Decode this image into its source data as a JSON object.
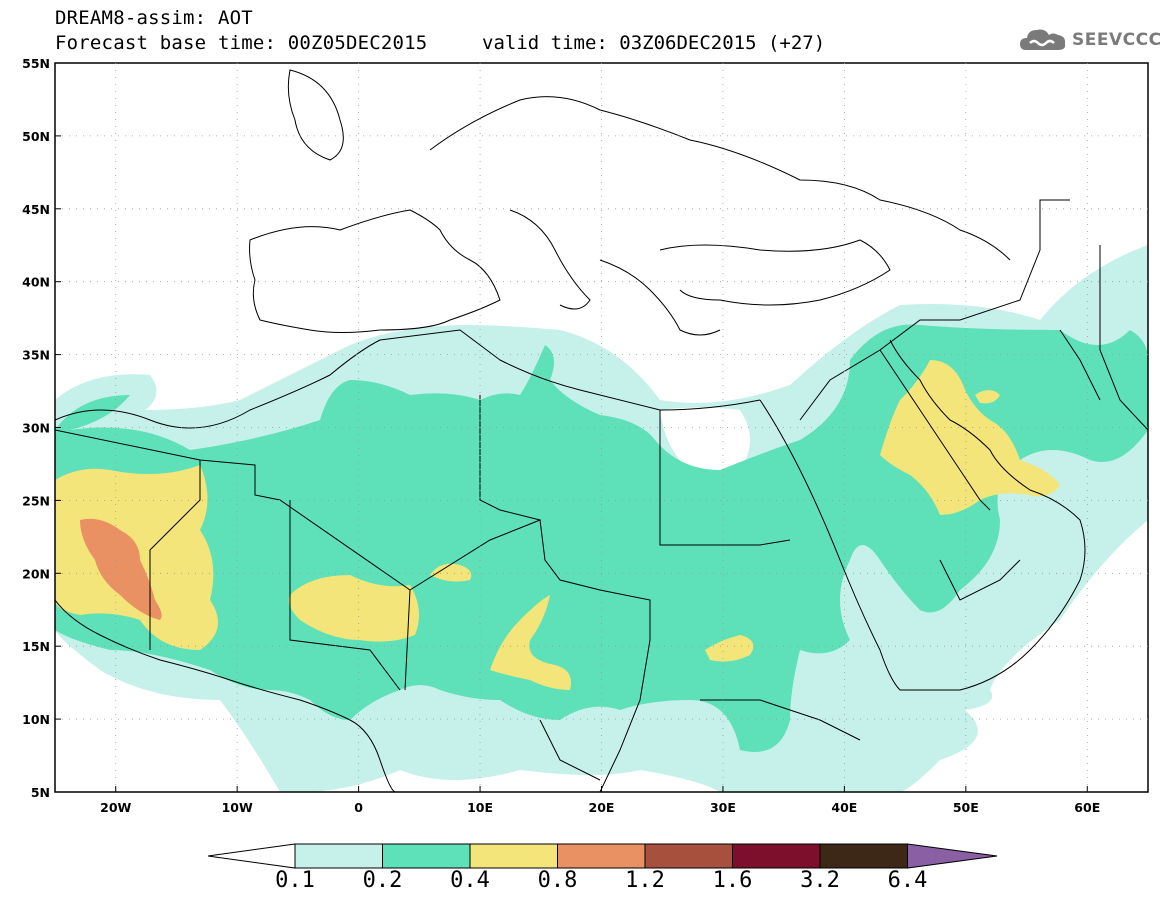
{
  "header": {
    "title": "DREAM8-assim: AOT",
    "base_time": "Forecast base time: 00Z05DEC2015",
    "valid_time": "valid time: 03Z06DEC2015 (+27)"
  },
  "logo": {
    "text": "SEEVCCC",
    "icon": "cloud-icon"
  },
  "axes": {
    "lat_labels": [
      "55N",
      "50N",
      "45N",
      "40N",
      "35N",
      "30N",
      "25N",
      "20N",
      "15N",
      "10N",
      "5N"
    ],
    "lon_labels": [
      "20W",
      "10W",
      "0",
      "10E",
      "20E",
      "30E",
      "40E",
      "50E",
      "60E"
    ]
  },
  "colorbar": {
    "labels": [
      "0.1",
      "0.2",
      "0.4",
      "0.8",
      "1.2",
      "1.6",
      "3.2",
      "6.4"
    ],
    "colors": [
      "#ffffff",
      "#c6f0ea",
      "#5ee0b8",
      "#f4e57a",
      "#ea9163",
      "#a8503e",
      "#7d0f2c",
      "#3d2817",
      "#8b5fa4"
    ]
  },
  "field_colors": {
    "low": "#c6f0ea",
    "mid": "#5ee0b8",
    "high": "#f4e57a",
    "top": "#ea9163"
  }
}
